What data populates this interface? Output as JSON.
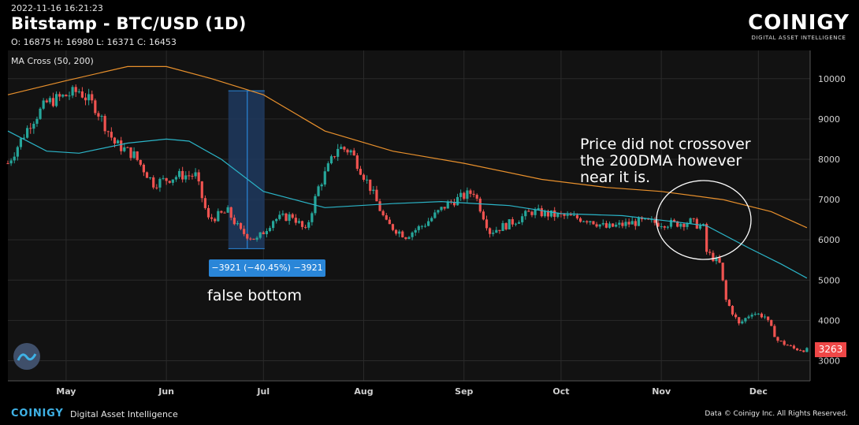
{
  "header": {
    "timestamp": "2022-11-16 16:21:23",
    "title": "Bitstamp - BTC/USD (1D)",
    "ohlc": "O: 16875 H: 16980 L: 16371 C: 16453",
    "logo_word": "COINIGY",
    "logo_tagline": "DIGITAL ASSET INTELLIGENCE"
  },
  "indicator_label": "MA Cross (50, 200)",
  "measure_label": "−3921 (−40.45%) −3921",
  "annotations": {
    "left": "false bottom",
    "right": "Price did not crossover the 200DMA however near it is."
  },
  "last_price": "3263",
  "footer": {
    "logo": "COINIGY",
    "tagline": "Digital Asset Intelligence",
    "rights": "Data © Coinigy Inc. All Rights Reserved."
  },
  "colors": {
    "up": "#26a69a",
    "down": "#ef5350",
    "ma50": "#2bb5c8",
    "ma200": "#e8902c",
    "measure": "#2a86d8"
  },
  "chart_data": {
    "type": "candlestick",
    "x_ticks": [
      "May",
      "Jun",
      "Jul",
      "Aug",
      "Sep",
      "Oct",
      "Nov",
      "Dec"
    ],
    "y_ticks": [
      3000,
      4000,
      5000,
      6000,
      7000,
      8000,
      9000,
      10000
    ],
    "ylim": [
      2500,
      10700
    ],
    "xlim": [
      "2018-04-13",
      "2018-12-17"
    ],
    "price_anchors": [
      [
        "2018-04-13",
        7900
      ],
      [
        "2018-04-20",
        8900
      ],
      [
        "2018-04-25",
        9400
      ],
      [
        "2018-05-05",
        9700
      ],
      [
        "2018-05-10",
        9300
      ],
      [
        "2018-05-16",
        8400
      ],
      [
        "2018-05-22",
        8100
      ],
      [
        "2018-05-28",
        7400
      ],
      [
        "2018-06-05",
        7600
      ],
      [
        "2018-06-10",
        7600
      ],
      [
        "2018-06-14",
        6500
      ],
      [
        "2018-06-20",
        6700
      ],
      [
        "2018-06-24",
        6200
      ],
      [
        "2018-06-29",
        6000
      ],
      [
        "2018-07-04",
        6500
      ],
      [
        "2018-07-10",
        6600
      ],
      [
        "2018-07-14",
        6200
      ],
      [
        "2018-07-18",
        7300
      ],
      [
        "2018-07-24",
        8300
      ],
      [
        "2018-07-28",
        8200
      ],
      [
        "2018-08-03",
        7300
      ],
      [
        "2018-08-08",
        6400
      ],
      [
        "2018-08-14",
        6100
      ],
      [
        "2018-08-20",
        6400
      ],
      [
        "2018-08-27",
        6900
      ],
      [
        "2018-09-04",
        7200
      ],
      [
        "2018-09-09",
        6200
      ],
      [
        "2018-09-15",
        6400
      ],
      [
        "2018-09-22",
        6700
      ],
      [
        "2018-09-30",
        6600
      ],
      [
        "2018-10-10",
        6500
      ],
      [
        "2018-10-15",
        6300
      ],
      [
        "2018-10-25",
        6450
      ],
      [
        "2018-11-05",
        6400
      ],
      [
        "2018-11-10",
        6450
      ],
      [
        "2018-11-14",
        6300
      ],
      [
        "2018-11-15",
        5700
      ],
      [
        "2018-11-19",
        5400
      ],
      [
        "2018-11-21",
        4500
      ],
      [
        "2018-11-25",
        3900
      ],
      [
        "2018-11-29",
        4200
      ],
      [
        "2018-12-03",
        4100
      ],
      [
        "2018-12-07",
        3500
      ],
      [
        "2018-12-12",
        3300
      ],
      [
        "2018-12-16",
        3263
      ]
    ],
    "series": [
      {
        "name": "MA Cross (50, 200)",
        "type": "line",
        "values": [
          [
            "2018-04-13",
            8700
          ],
          [
            "2018-04-25",
            8200
          ],
          [
            "2018-05-05",
            8150
          ],
          [
            "2018-05-20",
            8400
          ],
          [
            "2018-06-01",
            8500
          ],
          [
            "2018-06-08",
            8450
          ],
          [
            "2018-06-18",
            8000
          ],
          [
            "2018-07-01",
            7200
          ],
          [
            "2018-07-20",
            6800
          ],
          [
            "2018-08-10",
            6900
          ],
          [
            "2018-08-25",
            6950
          ],
          [
            "2018-09-15",
            6850
          ],
          [
            "2018-10-01",
            6650
          ],
          [
            "2018-10-20",
            6600
          ],
          [
            "2018-11-05",
            6450
          ],
          [
            "2018-11-15",
            6350
          ],
          [
            "2018-11-28",
            5800
          ],
          [
            "2018-12-08",
            5400
          ],
          [
            "2018-12-16",
            5050
          ]
        ]
      },
      {
        "name": "MA Cross (50, 200)",
        "type": "line",
        "values": [
          [
            "2018-04-13",
            9600
          ],
          [
            "2018-05-01",
            9950
          ],
          [
            "2018-05-20",
            10300
          ],
          [
            "2018-06-01",
            10300
          ],
          [
            "2018-06-15",
            10000
          ],
          [
            "2018-07-01",
            9600
          ],
          [
            "2018-07-20",
            8700
          ],
          [
            "2018-08-10",
            8200
          ],
          [
            "2018-09-01",
            7900
          ],
          [
            "2018-09-25",
            7500
          ],
          [
            "2018-10-15",
            7300
          ],
          [
            "2018-11-01",
            7200
          ],
          [
            "2018-11-20",
            7000
          ],
          [
            "2018-12-05",
            6700
          ],
          [
            "2018-12-16",
            6300
          ]
        ]
      }
    ],
    "measure": {
      "from_date": "2018-06-26",
      "from_price": 9700,
      "to_price": 5780,
      "change": -3921,
      "change_pct": -40.45
    }
  }
}
